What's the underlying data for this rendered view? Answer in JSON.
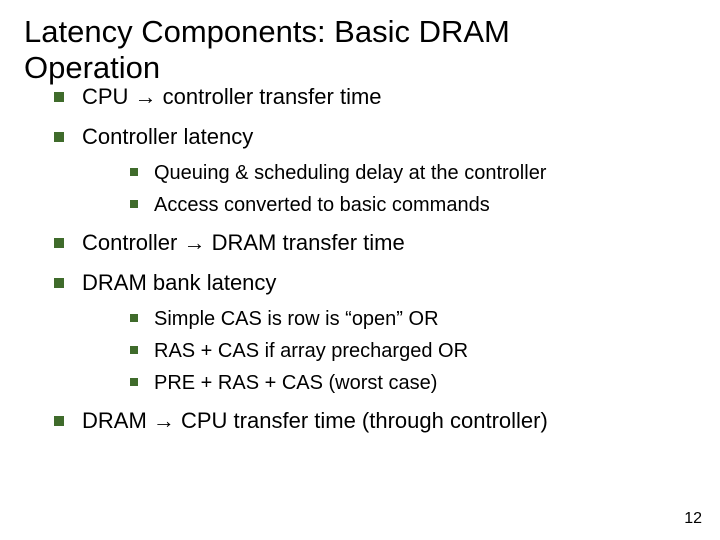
{
  "title_line1": "Latency Components: Basic DRAM",
  "title_line2": "Operation",
  "bullets": {
    "b1": "CPU → controller transfer time",
    "b2": "Controller latency",
    "b2_sub": {
      "s1": "Queuing & scheduling delay at the controller",
      "s2": "Access converted to basic commands"
    },
    "b3": "Controller → DRAM transfer time",
    "b4": "DRAM bank latency",
    "b4_sub": {
      "s1": "Simple CAS is row is “open” OR",
      "s2": "RAS + CAS if array precharged OR",
      "s3": "PRE + RAS + CAS (worst case)"
    },
    "b5": "DRAM → CPU transfer time (through controller)"
  },
  "page_number": "12",
  "colors": {
    "bullet_square": "#3f6b2b",
    "text": "#000000",
    "background": "#ffffff"
  },
  "typography": {
    "title_fontsize": 31,
    "lvl1_fontsize": 22,
    "lvl2_fontsize": 20,
    "pagenum_fontsize": 16,
    "font_family": "Verdana"
  }
}
